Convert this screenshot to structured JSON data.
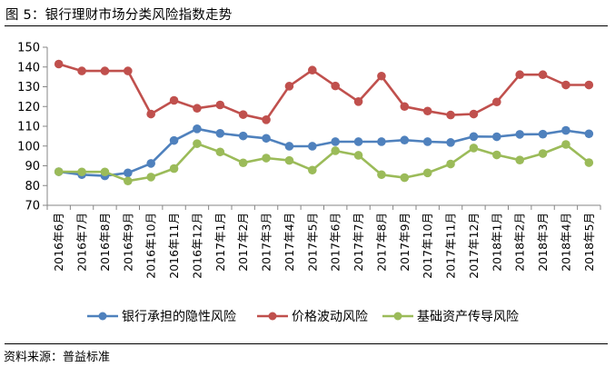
{
  "figure": {
    "title": "图 5：银行理财市场分类风险指数走势",
    "source": "资料来源：普益标准"
  },
  "chart_data": {
    "type": "line",
    "title": "银行理财市场分类风险指数走势",
    "xlabel": "",
    "ylabel": "",
    "ylim": [
      70,
      150
    ],
    "yticks": [
      70,
      80,
      90,
      100,
      110,
      120,
      130,
      140,
      150
    ],
    "grid": false,
    "legend_position": "bottom",
    "categories": [
      "2016年6月",
      "2016年7月",
      "2016年8月",
      "2016年9月",
      "2016年10月",
      "2016年11月",
      "2016年12月",
      "2017年1月",
      "2017年2月",
      "2017年3月",
      "2017年4月",
      "2017年5月",
      "2017年6月",
      "2017年7月",
      "2017年8月",
      "2017年9月",
      "2017年10月",
      "2017年11月",
      "2017年12月",
      "2018年1月",
      "2018年2月",
      "2018年3月",
      "2018年4月",
      "2018年5月"
    ],
    "series": [
      {
        "name": "银行承担的隐性风险",
        "color": "#4F81BD",
        "values": [
          87.0,
          85.5,
          84.9,
          86.4,
          91.2,
          102.8,
          108.7,
          106.4,
          105.1,
          103.9,
          99.9,
          99.9,
          102.2,
          102.2,
          102.2,
          103.0,
          102.2,
          101.8,
          104.8,
          104.7,
          105.9,
          106.0,
          107.9,
          106.2
        ]
      },
      {
        "name": "价格波动风险",
        "color": "#C0504D",
        "values": [
          141.5,
          138.0,
          138.0,
          138.0,
          116.2,
          123.1,
          119.1,
          120.8,
          115.9,
          113.3,
          130.3,
          138.4,
          130.4,
          122.5,
          135.4,
          120.0,
          117.7,
          115.7,
          116.2,
          122.3,
          136.1,
          136.1,
          130.9,
          130.9
        ]
      },
      {
        "name": "基础资产传导风险",
        "color": "#9BBB59",
        "values": [
          87.0,
          86.9,
          86.9,
          82.3,
          84.3,
          88.6,
          101.2,
          97.0,
          91.5,
          93.9,
          92.7,
          87.8,
          97.6,
          95.3,
          85.5,
          84.0,
          86.4,
          90.9,
          99.0,
          95.5,
          92.9,
          96.2,
          100.8,
          91.6
        ]
      }
    ]
  }
}
